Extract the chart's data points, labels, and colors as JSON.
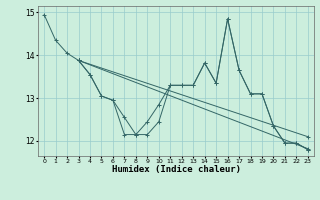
{
  "xlabel": "Humidex (Indice chaleur)",
  "bg_color": "#cceedd",
  "line_color": "#336666",
  "grid_color": "#99cccc",
  "xlim": [
    -0.5,
    23.5
  ],
  "ylim": [
    11.65,
    15.15
  ],
  "yticks": [
    12,
    13,
    14,
    15
  ],
  "xticks": [
    0,
    1,
    2,
    3,
    4,
    5,
    6,
    7,
    8,
    9,
    10,
    11,
    12,
    13,
    14,
    15,
    16,
    17,
    18,
    19,
    20,
    21,
    22,
    23
  ],
  "lines": [
    {
      "x": [
        0,
        1,
        2,
        3,
        4,
        5,
        6,
        7,
        8,
        9,
        10,
        11,
        12,
        13,
        14,
        15,
        16,
        17,
        18,
        19,
        20,
        21,
        22,
        23
      ],
      "y": [
        14.95,
        14.35,
        14.05,
        13.88,
        13.55,
        13.05,
        12.95,
        12.15,
        12.15,
        12.15,
        12.45,
        13.3,
        13.3,
        13.3,
        13.82,
        13.35,
        14.85,
        13.65,
        13.1,
        13.1,
        12.35,
        11.95,
        11.95,
        11.8
      ]
    },
    {
      "x": [
        3,
        4,
        5,
        6,
        7,
        8,
        9,
        10,
        11,
        12,
        13,
        14,
        15,
        16,
        17,
        18,
        19,
        20,
        21,
        22,
        23
      ],
      "y": [
        13.88,
        13.55,
        13.05,
        12.95,
        12.55,
        12.15,
        12.45,
        12.85,
        13.3,
        13.3,
        13.3,
        13.82,
        13.35,
        14.85,
        13.65,
        13.1,
        13.1,
        12.35,
        11.95,
        11.95,
        11.8
      ]
    },
    {
      "x": [
        3,
        23
      ],
      "y": [
        13.88,
        12.1
      ]
    },
    {
      "x": [
        3,
        23
      ],
      "y": [
        13.88,
        11.82
      ]
    }
  ]
}
